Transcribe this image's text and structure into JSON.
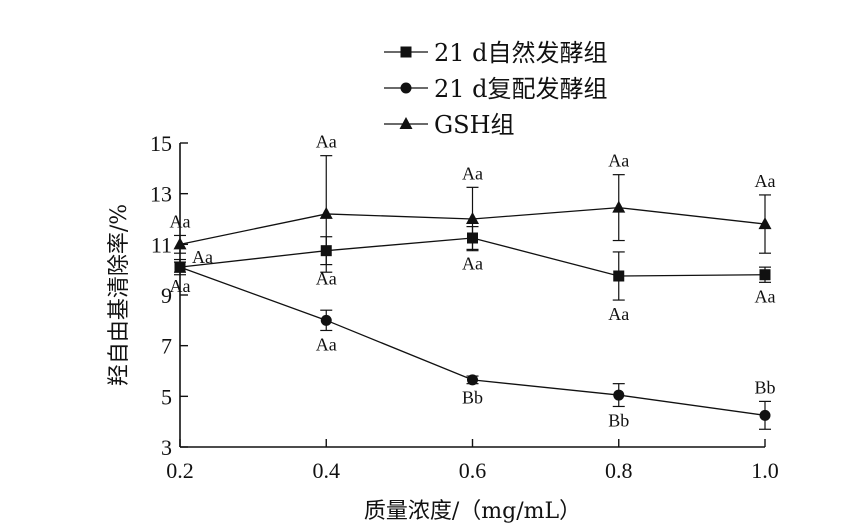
{
  "chart_data": {
    "type": "line",
    "xlabel": "质量浓度/（mg/mL）",
    "ylabel": "羟自由基清除率/%",
    "x": [
      0.2,
      0.4,
      0.6,
      0.8,
      1.0
    ],
    "x_tick_labels": [
      "0.2",
      "0.4",
      "0.6",
      "0.8",
      "1.0"
    ],
    "xlim": [
      0.2,
      1.0
    ],
    "ylim": [
      3,
      15
    ],
    "y_ticks": [
      3,
      5,
      7,
      9,
      11,
      13,
      15
    ],
    "y_tick_labels": [
      "3",
      "5",
      "7",
      "9",
      "11",
      "13",
      "15"
    ],
    "grid": false,
    "legend_position": "top-center",
    "series": [
      {
        "name": "21 d自然发酵组",
        "marker": "square",
        "values": [
          10.1,
          10.75,
          11.25,
          9.75,
          9.8
        ],
        "error": [
          0.3,
          0.55,
          0.45,
          0.95,
          0.3
        ],
        "labels": [
          "Aa",
          "Aa",
          "Aa",
          "Aa",
          "Aa"
        ],
        "label_side": [
          "right",
          "below",
          "below",
          "below",
          "below"
        ]
      },
      {
        "name": "21 d复配发酵组",
        "marker": "circle",
        "values": [
          10.1,
          8.0,
          5.65,
          5.05,
          4.25
        ],
        "error": [
          0.2,
          0.4,
          0.15,
          0.45,
          0.55
        ],
        "labels": [
          "Aa",
          "Aa",
          "Bb",
          "Bb",
          "Bb"
        ],
        "label_side": [
          "below",
          "below",
          "below",
          "below",
          "above"
        ]
      },
      {
        "name": "GSH组",
        "marker": "triangle",
        "values": [
          11.0,
          12.2,
          12.0,
          12.45,
          11.8
        ],
        "error": [
          0.35,
          2.3,
          1.25,
          1.3,
          1.15
        ],
        "labels": [
          "Aa",
          "Aa",
          "Aa",
          "Aa",
          "Aa"
        ],
        "label_side": [
          "above",
          "above",
          "above",
          "above",
          "above"
        ]
      }
    ]
  }
}
